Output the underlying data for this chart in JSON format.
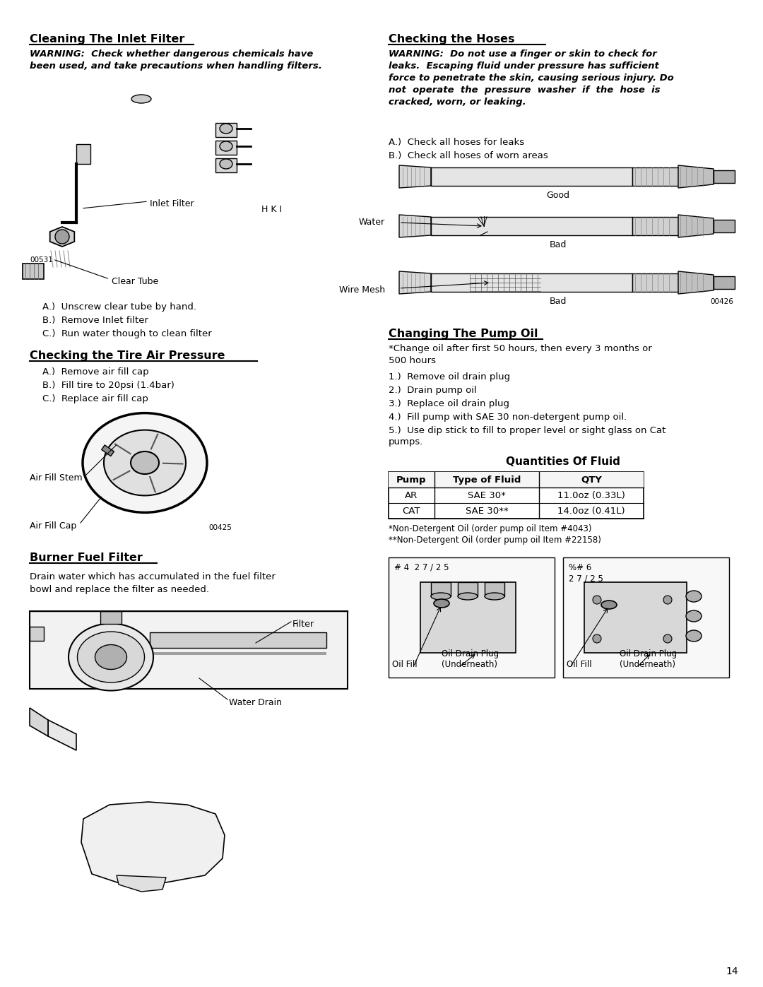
{
  "bg_color": "#ffffff",
  "text_color": "#000000",
  "page_number": "14",
  "sections": {
    "cleaning_inlet": {
      "title": "Cleaning The Inlet Filter",
      "warning": "WARNING:  Check whether dangerous chemicals have\nbeen used, and take precautions when handling filters.",
      "steps": [
        "A.)  Unscrew clear tube by hand.",
        "B.)  Remove Inlet filter",
        "C.)  Run water though to clean filter"
      ],
      "labels": [
        "Inlet Filter",
        "Clear Tube",
        "00531",
        "H K I"
      ]
    },
    "checking_hoses": {
      "title": "Checking the Hoses",
      "warning": "WARNING:  Do not use a finger or skin to check for\nleaks.  Escaping fluid under pressure has sufficient\nforce to penetrate the skin, causing serious injury. Do\nnot  operate  the  pressure  washer  if  the  hose  is\ncracked, worn, or leaking.",
      "steps": [
        "A.)  Check all hoses for leaks",
        "B.)  Check all hoses of worn areas"
      ],
      "labels": [
        "Good",
        "Bad",
        "Bad",
        "Water",
        "Wire Mesh",
        "00426"
      ]
    },
    "tire_pressure": {
      "title": "Checking the Tire Air Pressure",
      "steps": [
        "A.)  Remove air fill cap",
        "B.)  Fill tire to 20psi (1.4bar)",
        "C.)  Replace air fill cap"
      ],
      "labels": [
        "Air Fill Stem",
        "Air Fill Cap",
        "00425"
      ]
    },
    "burner_fuel": {
      "title": "Burner Fuel Filter",
      "text": "Drain water which has accumulated in the fuel filter\nbowl and replace the filter as needed.",
      "labels": [
        "Filter",
        "Water Drain"
      ]
    },
    "pump_oil": {
      "title": "Changing The Pump Oil",
      "note": "*Change oil after first 50 hours, then every 3 months or\n500 hours",
      "steps": [
        "1.)  Remove oil drain plug",
        "2.)  Drain pump oil",
        "3.)  Replace oil drain plug",
        "4.)  Fill pump with SAE 30 non-detergent pump oil.",
        "5.)  Use dip stick to fill to proper level or sight glass on Cat\npumps."
      ]
    },
    "quantities": {
      "title": "Quantities Of Fluid",
      "table_headers": [
        "Pump",
        "Type of Fluid",
        "QTY"
      ],
      "table_rows": [
        [
          "AR",
          "SAE 30*",
          "11.0oz (0.33L)"
        ],
        [
          "CAT",
          "SAE 30**",
          "14.0oz (0.41L)"
        ]
      ],
      "footnotes": [
        "*Non-Detergent Oil (order pump oil Item #4043)",
        "**Non-Detergent Oil (order pump oil Item #22158)"
      ],
      "pump_labels_left": [
        "# 4  2 7 / 2 5",
        "Oil Fill",
        "Oil Drain Plug\n(Underneath)"
      ],
      "pump_labels_right": [
        "%# 6\n2 7 / 2 5",
        "Oil Fill",
        "Oil Drain Plug\n(Underneath)"
      ]
    }
  }
}
